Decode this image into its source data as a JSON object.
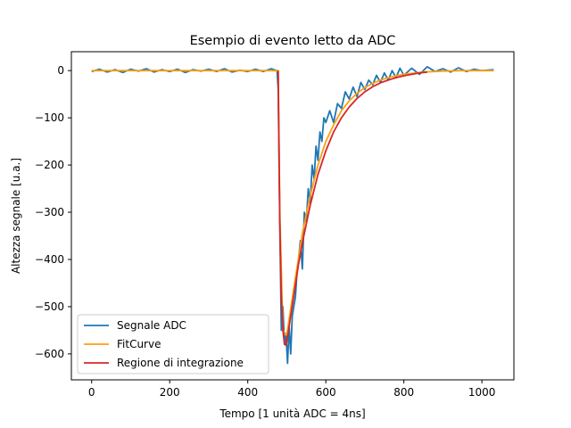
{
  "chart_data": {
    "type": "line",
    "title": "Esempio di evento letto da ADC",
    "xlabel": "Tempo [1 unità ADC = 4ns]",
    "ylabel": "Altezza segnale [u.a.]",
    "xlim": [
      -52,
      1082
    ],
    "ylim": [
      -655,
      40
    ],
    "xticks": [
      0,
      200,
      400,
      600,
      800,
      1000
    ],
    "yticks": [
      0,
      -100,
      -200,
      -300,
      -400,
      -500,
      -600
    ],
    "legend_position": "lower-left",
    "grid": false,
    "series": [
      {
        "name": "Segnale ADC",
        "color": "#1f77b4",
        "x": [
          0,
          20,
          40,
          60,
          80,
          100,
          120,
          140,
          160,
          180,
          200,
          220,
          240,
          260,
          280,
          300,
          320,
          340,
          360,
          380,
          400,
          420,
          440,
          460,
          475,
          478,
          482,
          486,
          490,
          494,
          498,
          502,
          506,
          510,
          514,
          518,
          522,
          526,
          530,
          535,
          540,
          545,
          550,
          555,
          560,
          565,
          570,
          575,
          580,
          585,
          590,
          595,
          600,
          610,
          620,
          630,
          640,
          650,
          660,
          670,
          680,
          690,
          700,
          710,
          720,
          730,
          740,
          750,
          760,
          770,
          780,
          790,
          800,
          820,
          840,
          860,
          880,
          900,
          920,
          940,
          960,
          980,
          1000,
          1030
        ],
        "y": [
          -2,
          3,
          -3,
          2,
          -4,
          3,
          -1,
          4,
          -3,
          2,
          -2,
          3,
          -4,
          2,
          -1,
          3,
          -2,
          4,
          -3,
          1,
          -2,
          3,
          -2,
          4,
          0,
          -40,
          -320,
          -550,
          -500,
          -580,
          -560,
          -620,
          -540,
          -600,
          -520,
          -500,
          -480,
          -430,
          -400,
          -360,
          -420,
          -300,
          -320,
          -250,
          -280,
          -200,
          -230,
          -160,
          -190,
          -130,
          -150,
          -100,
          -110,
          -85,
          -110,
          -70,
          -80,
          -45,
          -60,
          -35,
          -55,
          -25,
          -40,
          -20,
          -30,
          -10,
          -25,
          -5,
          -20,
          0,
          -15,
          5,
          -10,
          5,
          -8,
          8,
          -2,
          4,
          -3,
          6,
          -2,
          3,
          0,
          2
        ]
      },
      {
        "name": "FitCurve",
        "color": "#ff9f0e",
        "x": [
          0,
          100,
          200,
          300,
          400,
          478,
          482,
          490,
          500,
          520,
          540,
          560,
          580,
          600,
          620,
          640,
          660,
          680,
          700,
          720,
          740,
          760,
          780,
          800,
          850,
          900,
          950,
          1000,
          1030
        ],
        "y": [
          0,
          0,
          0,
          0,
          0,
          0,
          -300,
          -550,
          -560,
          -450,
          -345,
          -265,
          -200,
          -150,
          -115,
          -85,
          -64,
          -48,
          -36,
          -27,
          -20,
          -15,
          -11,
          -8,
          -3,
          -1,
          0,
          0,
          0
        ]
      },
      {
        "name": "Regione di integrazione",
        "color": "#d62728",
        "x": [
          478,
          482,
          486,
          490,
          494,
          498,
          502,
          510,
          520,
          530,
          540,
          560,
          580,
          600,
          620,
          640,
          660,
          680,
          700,
          720,
          740,
          760,
          780,
          800,
          820,
          840,
          860
        ],
        "y": [
          0,
          -320,
          -480,
          -550,
          -578,
          -582,
          -565,
          -520,
          -465,
          -410,
          -365,
          -285,
          -220,
          -170,
          -130,
          -100,
          -77,
          -59,
          -45,
          -34,
          -26,
          -20,
          -15,
          -11,
          -8,
          -5,
          -3
        ]
      }
    ]
  }
}
